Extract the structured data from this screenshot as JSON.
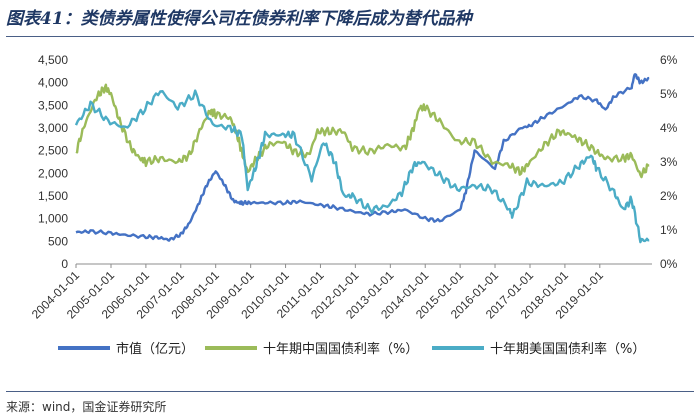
{
  "title": "图表41：类债券属性使得公司在债券利率下降后成为替代品种",
  "source": "来源：wind，国金证券研究所",
  "chart_data": {
    "type": "line",
    "title": "图表41：类债券属性使得公司在债券利率下降后成为替代品种",
    "x_tick_labels": [
      "2004-01-01",
      "2005-01-01",
      "2006-01-01",
      "2007-01-01",
      "2008-01-01",
      "2009-01-01",
      "2010-01-01",
      "2011-01-01",
      "2012-01-01",
      "2013-01-01",
      "2014-01-01",
      "2015-01-01",
      "2016-01-01",
      "2017-01-01",
      "2018-01-01",
      "2019-01-01"
    ],
    "x_range": [
      "2004-01-01",
      "2020-06-30"
    ],
    "y_left": {
      "ticks": [
        "0",
        "500",
        "1,000",
        "1,500",
        "2,000",
        "2,500",
        "3,000",
        "3,500",
        "4,000",
        "4,500"
      ],
      "range": [
        0,
        4500
      ]
    },
    "y_right": {
      "ticks": [
        "0%",
        "1%",
        "2%",
        "3%",
        "4%",
        "5%",
        "6%"
      ],
      "range": [
        0,
        6
      ]
    },
    "legend_position": "bottom",
    "series": [
      {
        "name": "市值（亿元）",
        "axis": "left",
        "color": "#4472c4",
        "x": [
          "2004-01-01",
          "2004-06-01",
          "2005-01-01",
          "2005-06-01",
          "2006-01-01",
          "2006-06-01",
          "2006-09-01",
          "2007-01-01",
          "2007-04-01",
          "2007-07-01",
          "2007-10-01",
          "2008-01-01",
          "2008-04-01",
          "2008-07-01",
          "2008-09-01",
          "2008-10-01",
          "2009-01-01",
          "2009-06-01",
          "2010-01-01",
          "2010-06-01",
          "2011-01-01",
          "2011-06-01",
          "2012-01-01",
          "2012-06-01",
          "2013-01-01",
          "2013-06-01",
          "2014-01-01",
          "2014-06-01",
          "2015-01-01",
          "2015-03-01",
          "2015-06-01",
          "2016-01-01",
          "2016-04-01",
          "2016-10-01",
          "2017-01-01",
          "2017-06-01",
          "2018-01-01",
          "2018-06-01",
          "2018-12-01",
          "2019-03-01",
          "2019-06-01",
          "2019-12-01",
          "2020-01-01",
          "2020-03-01",
          "2020-06-01"
        ],
        "values": [
          700,
          720,
          680,
          640,
          600,
          580,
          530,
          650,
          900,
          1300,
          1750,
          2050,
          1750,
          1400,
          1350,
          1350,
          1350,
          1350,
          1350,
          1380,
          1300,
          1250,
          1150,
          1100,
          1150,
          1200,
          1000,
          950,
          1200,
          1600,
          2500,
          2100,
          2700,
          3000,
          3050,
          3250,
          3500,
          3700,
          3600,
          3400,
          3700,
          3900,
          4200,
          4000,
          4100
        ]
      },
      {
        "name": "十年期中国国债利率（%）",
        "axis": "right",
        "color": "#9bbb59",
        "x": [
          "2004-01-01",
          "2004-04-01",
          "2004-08-01",
          "2004-11-01",
          "2005-01-01",
          "2005-04-01",
          "2005-08-01",
          "2005-11-01",
          "2006-01-01",
          "2006-06-01",
          "2006-12-01",
          "2007-04-01",
          "2007-08-01",
          "2007-11-01",
          "2008-01-01",
          "2008-06-01",
          "2008-08-01",
          "2008-10-01",
          "2008-12-01",
          "2009-03-01",
          "2009-07-01",
          "2009-12-01",
          "2010-04-01",
          "2010-09-01",
          "2010-12-01",
          "2011-04-01",
          "2011-09-01",
          "2011-12-01",
          "2012-06-01",
          "2012-12-01",
          "2013-06-01",
          "2013-09-01",
          "2013-11-01",
          "2014-01-01",
          "2014-06-01",
          "2014-12-01",
          "2015-06-01",
          "2015-12-01",
          "2016-06-01",
          "2016-10-01",
          "2017-01-01",
          "2017-06-01",
          "2017-11-01",
          "2018-03-01",
          "2018-07-01",
          "2018-12-01",
          "2019-03-01",
          "2019-09-01",
          "2019-12-01",
          "2020-03-01",
          "2020-06-01"
        ],
        "values": [
          3.3,
          4.1,
          4.9,
          5.2,
          5.0,
          4.2,
          3.4,
          3.1,
          3.0,
          3.1,
          3.0,
          3.2,
          4.0,
          4.5,
          4.4,
          4.3,
          3.9,
          3.3,
          2.7,
          3.1,
          3.5,
          3.6,
          3.3,
          3.2,
          3.9,
          3.9,
          3.9,
          3.4,
          3.3,
          3.5,
          3.4,
          4.0,
          4.6,
          4.6,
          4.2,
          3.6,
          3.6,
          3.0,
          2.9,
          2.7,
          3.0,
          3.5,
          3.9,
          3.8,
          3.6,
          3.3,
          3.1,
          3.1,
          3.2,
          2.6,
          2.9
        ]
      },
      {
        "name": "十年期美国国债利率（%）",
        "axis": "right",
        "color": "#4bacc6",
        "x": [
          "2004-01-01",
          "2004-06-01",
          "2004-12-01",
          "2005-06-01",
          "2005-12-01",
          "2006-06-01",
          "2006-12-01",
          "2007-06-01",
          "2007-12-01",
          "2008-06-01",
          "2008-10-01",
          "2008-12-01",
          "2009-03-01",
          "2009-06-01",
          "2009-12-01",
          "2010-04-01",
          "2010-10-01",
          "2011-02-01",
          "2011-06-01",
          "2011-09-01",
          "2011-12-01",
          "2012-06-01",
          "2012-12-01",
          "2013-05-01",
          "2013-09-01",
          "2013-12-01",
          "2014-06-01",
          "2014-12-01",
          "2015-06-01",
          "2015-12-01",
          "2016-06-01",
          "2016-07-01",
          "2016-12-01",
          "2017-06-01",
          "2017-12-01",
          "2018-06-01",
          "2018-10-01",
          "2018-12-01",
          "2019-06-01",
          "2019-09-01",
          "2019-12-01",
          "2020-03-01",
          "2020-06-01"
        ],
        "values": [
          4.1,
          4.7,
          4.2,
          4.0,
          4.5,
          5.1,
          4.6,
          5.0,
          4.1,
          4.0,
          3.8,
          2.2,
          2.9,
          3.8,
          3.8,
          3.8,
          2.5,
          3.6,
          3.0,
          2.0,
          2.0,
          1.6,
          1.7,
          2.1,
          2.9,
          3.0,
          2.6,
          2.2,
          2.3,
          2.2,
          1.6,
          1.4,
          2.4,
          2.3,
          2.4,
          2.9,
          3.2,
          2.8,
          2.1,
          1.6,
          1.9,
          0.7,
          0.7
        ]
      }
    ]
  }
}
